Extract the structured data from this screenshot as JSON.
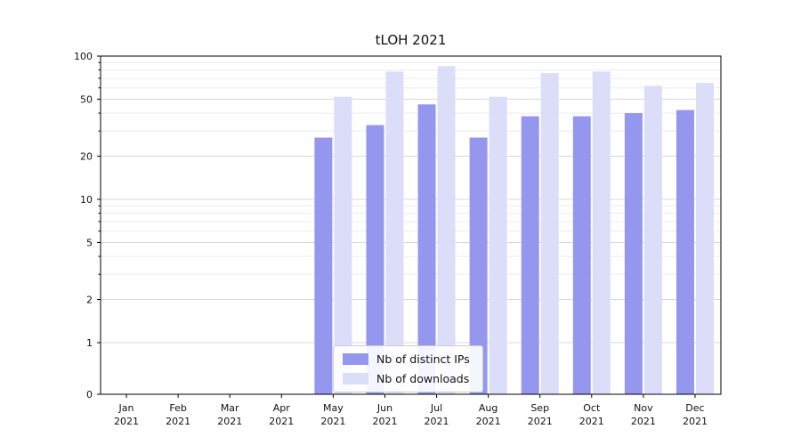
{
  "chart_data": {
    "type": "bar",
    "title": "tLOH 2021",
    "yscale": "symlog",
    "ylim": [
      0,
      100
    ],
    "y_ticks": [
      0,
      1,
      2,
      5,
      10,
      20,
      50,
      100
    ],
    "grid": true,
    "legend_position": "bottom-center-inside",
    "categories": [
      {
        "month": "Jan",
        "year": "2021"
      },
      {
        "month": "Feb",
        "year": "2021"
      },
      {
        "month": "Mar",
        "year": "2021"
      },
      {
        "month": "Apr",
        "year": "2021"
      },
      {
        "month": "May",
        "year": "2021"
      },
      {
        "month": "Jun",
        "year": "2021"
      },
      {
        "month": "Jul",
        "year": "2021"
      },
      {
        "month": "Aug",
        "year": "2021"
      },
      {
        "month": "Sep",
        "year": "2021"
      },
      {
        "month": "Oct",
        "year": "2021"
      },
      {
        "month": "Nov",
        "year": "2021"
      },
      {
        "month": "Dec",
        "year": "2021"
      }
    ],
    "series": [
      {
        "name": "Nb of distinct IPs",
        "color": "#9597ee",
        "values": [
          0,
          0,
          0,
          0,
          27,
          33,
          46,
          27,
          38,
          38,
          40,
          42
        ]
      },
      {
        "name": "Nb of downloads",
        "color": "#dcddf9",
        "values": [
          0,
          0,
          0,
          0,
          52,
          78,
          85,
          52,
          76,
          78,
          62,
          65
        ]
      }
    ],
    "colors": {
      "major_grid": "#d9d9d9",
      "minor_grid": "#ececec",
      "frame": "#000000",
      "tick_text": "#111111"
    }
  }
}
